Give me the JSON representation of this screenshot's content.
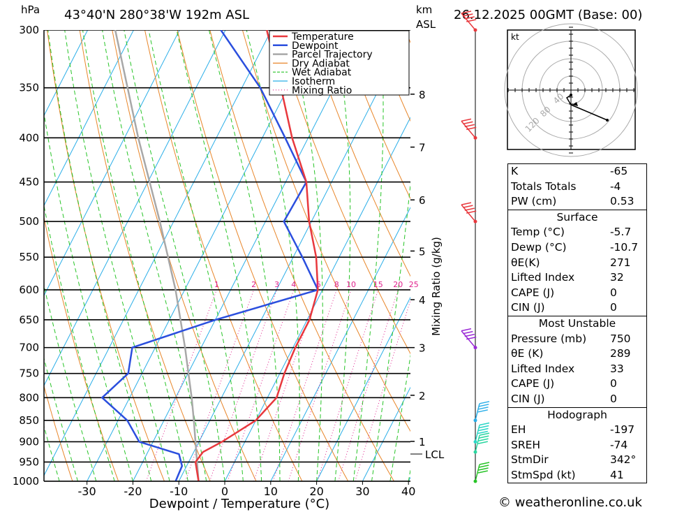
{
  "header": {
    "hpa_unit": "hPa",
    "location": "43°40'N  280°38'W  192m  ASL",
    "km_unit": "km",
    "asl_unit": "ASL",
    "datetime": "26.12.2025  00GMT  (Base: 00)"
  },
  "legend": {
    "items": [
      {
        "label": "Temperature",
        "color": "#e8383d"
      },
      {
        "label": "Dewpoint",
        "color": "#2b4fde"
      },
      {
        "label": "Parcel Trajectory",
        "color": "#a8a8a8"
      },
      {
        "label": "Dry Adiabat",
        "color": "#e8862a"
      },
      {
        "label": "Wet Adiabat",
        "color": "#27c427"
      },
      {
        "label": "Isotherm",
        "color": "#2aaee8"
      },
      {
        "label": "Mixing Ratio",
        "color": "#e0208c"
      }
    ]
  },
  "chart_data": {
    "type": "skew-t log-p",
    "xlabel": "Dewpoint / Temperature (°C)",
    "ylabel_left": "hPa",
    "ylabel_right": "km ASL",
    "mixing_ratio_axis_label": "Mixing Ratio (g/kg)",
    "x_ticks": [
      "-30",
      "-20",
      "-10",
      "0",
      "10",
      "20",
      "30",
      "40"
    ],
    "x_tick_values": [
      -30,
      -20,
      -10,
      0,
      10,
      20,
      30,
      40
    ],
    "xlim": [
      -40,
      40
    ],
    "pressure_levels": [
      300,
      350,
      400,
      450,
      500,
      550,
      600,
      650,
      700,
      750,
      800,
      850,
      900,
      950,
      1000
    ],
    "pressure_labels": [
      "300",
      "350",
      "400",
      "450",
      "500",
      "550",
      "600",
      "650",
      "700",
      "750",
      "800",
      "850",
      "900",
      "950",
      "1000"
    ],
    "km_ticks": [
      {
        "label": "8",
        "p": 356
      },
      {
        "label": "7",
        "p": 410
      },
      {
        "label": "6",
        "p": 472
      },
      {
        "label": "5",
        "p": 541
      },
      {
        "label": "4",
        "p": 616
      },
      {
        "label": "3",
        "p": 700
      },
      {
        "label": "2",
        "p": 795
      },
      {
        "label": "1",
        "p": 899
      }
    ],
    "lcl": {
      "label": "LCL",
      "p": 930
    },
    "mixing_ratio_labels": [
      "1",
      "2",
      "3",
      "4",
      "6",
      "8",
      "10",
      "15",
      "20",
      "25"
    ],
    "mixing_ratio_values": [
      1,
      2,
      3,
      4,
      6,
      8,
      10,
      15,
      20,
      25
    ],
    "temperature": [
      [
        1000,
        -5.7
      ],
      [
        950,
        -8.5
      ],
      [
        925,
        -8
      ],
      [
        900,
        -5
      ],
      [
        850,
        0
      ],
      [
        800,
        2
      ],
      [
        750,
        1
      ],
      [
        700,
        0.5
      ],
      [
        650,
        0.5
      ],
      [
        600,
        -1
      ],
      [
        550,
        -5
      ],
      [
        500,
        -10.5
      ],
      [
        450,
        -15.5
      ],
      [
        400,
        -23.5
      ],
      [
        350,
        -31.5
      ],
      [
        300,
        -41
      ]
    ],
    "dewpoint": [
      [
        1000,
        -10.7
      ],
      [
        960,
        -11
      ],
      [
        930,
        -13
      ],
      [
        900,
        -23
      ],
      [
        850,
        -28
      ],
      [
        800,
        -36
      ],
      [
        750,
        -33
      ],
      [
        700,
        -35
      ],
      [
        650,
        -20
      ],
      [
        600,
        -1
      ],
      [
        550,
        -8
      ],
      [
        500,
        -16
      ],
      [
        450,
        -15.5
      ],
      [
        400,
        -25
      ],
      [
        350,
        -36
      ],
      [
        300,
        -51
      ]
    ],
    "parcel": [
      [
        1000,
        -5.7
      ],
      [
        930,
        -9.2
      ],
      [
        850,
        -13.5
      ],
      [
        800,
        -16.5
      ],
      [
        700,
        -23.5
      ],
      [
        600,
        -32
      ],
      [
        500,
        -43
      ],
      [
        400,
        -57
      ],
      [
        300,
        -74
      ]
    ]
  },
  "hodograph": {
    "unit_label": "kt",
    "ring_labels": [
      "40",
      "80",
      "120"
    ]
  },
  "wind_profile": {
    "levels": [
      {
        "p": 300,
        "color": "#e8383d"
      },
      {
        "p": 400,
        "color": "#e8383d"
      },
      {
        "p": 500,
        "color": "#e8383d"
      },
      {
        "p": 700,
        "color": "#9a2ad6"
      },
      {
        "p": 850,
        "color": "#2aaee8"
      },
      {
        "p": 900,
        "color": "#2ad6c6"
      },
      {
        "p": 925,
        "color": "#2ad6a0"
      },
      {
        "p": 1000,
        "color": "#27c427"
      }
    ]
  },
  "indices": {
    "rows1": [
      {
        "label": "K",
        "value": "-65"
      },
      {
        "label": "Totals Totals",
        "value": "-4"
      },
      {
        "label": "PW (cm)",
        "value": "0.53"
      }
    ],
    "surface_title": "Surface",
    "surface": [
      {
        "label": "Temp (°C)",
        "value": "-5.7"
      },
      {
        "label": "Dewp (°C)",
        "value": "-10.7"
      },
      {
        "label": "θE(K)",
        "value": "271"
      },
      {
        "label": "Lifted Index",
        "value": "32"
      },
      {
        "label": "CAPE (J)",
        "value": "0"
      },
      {
        "label": "CIN (J)",
        "value": "0"
      }
    ],
    "mu_title": "Most Unstable",
    "mu": [
      {
        "label": "Pressure (mb)",
        "value": "750"
      },
      {
        "label": "θE (K)",
        "value": "289"
      },
      {
        "label": "Lifted Index",
        "value": "33"
      },
      {
        "label": "CAPE (J)",
        "value": "0"
      },
      {
        "label": "CIN (J)",
        "value": "0"
      }
    ],
    "hodo_title": "Hodograph",
    "hodo": [
      {
        "label": "EH",
        "value": "-197"
      },
      {
        "label": "SREH",
        "value": "-74"
      },
      {
        "label": "StmDir",
        "value": "342°"
      },
      {
        "label": "StmSpd (kt)",
        "value": "41"
      }
    ]
  },
  "credit": "© weatheronline.co.uk"
}
